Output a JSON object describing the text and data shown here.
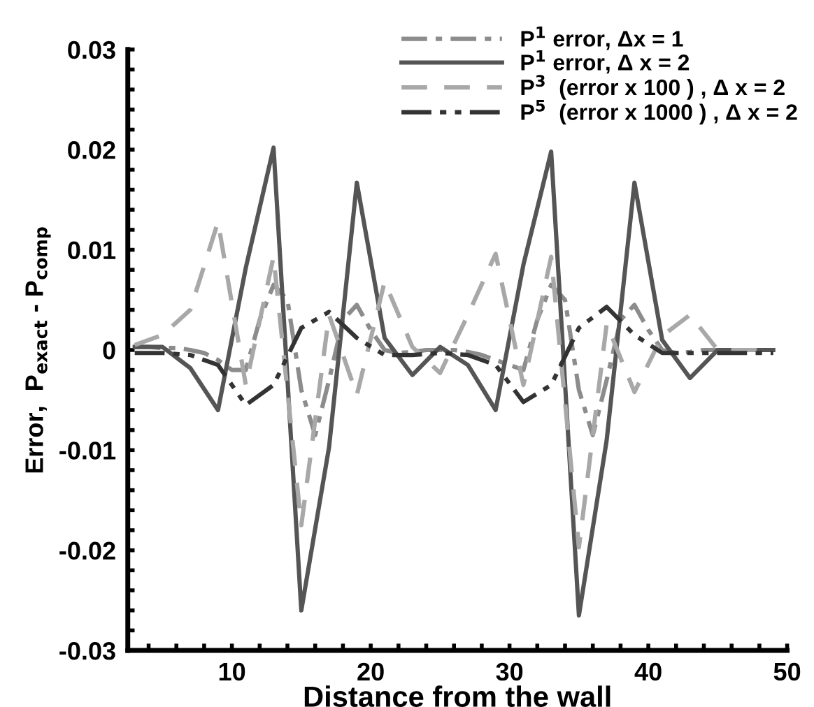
{
  "chart_data": {
    "type": "line",
    "xlabel": "Distance from the wall",
    "ylabel": "Error,  P$_{exact}$ - P$_{comp}$",
    "xlim": [
      2.5,
      50
    ],
    "ylim": [
      -0.03,
      0.03
    ],
    "xticks": [
      {
        "value": 4,
        "label": null
      },
      {
        "value": 6,
        "label": null
      },
      {
        "value": 8,
        "label": null
      },
      10,
      {
        "value": 12,
        "label": null
      },
      {
        "value": 14,
        "label": null
      },
      {
        "value": 16,
        "label": null
      },
      {
        "value": 18,
        "label": null
      },
      20,
      {
        "value": 22,
        "label": null
      },
      {
        "value": 24,
        "label": null
      },
      {
        "value": 26,
        "label": null
      },
      {
        "value": 28,
        "label": null
      },
      30,
      {
        "value": 32,
        "label": null
      },
      {
        "value": 34,
        "label": null
      },
      {
        "value": 36,
        "label": null
      },
      {
        "value": 38,
        "label": null
      },
      40,
      {
        "value": 42,
        "label": null
      },
      {
        "value": 44,
        "label": null
      },
      {
        "value": 46,
        "label": null
      },
      {
        "value": 48,
        "label": null
      },
      50
    ],
    "yticks": [
      -0.03,
      {
        "value": -0.028,
        "label": null
      },
      {
        "value": -0.026,
        "label": null
      },
      {
        "value": -0.024,
        "label": null
      },
      {
        "value": -0.022,
        "label": null
      },
      -0.02,
      {
        "value": -0.018,
        "label": null
      },
      {
        "value": -0.016,
        "label": null
      },
      {
        "value": -0.014,
        "label": null
      },
      {
        "value": -0.012,
        "label": null
      },
      -0.01,
      {
        "value": -0.008,
        "label": null
      },
      {
        "value": -0.006,
        "label": null
      },
      {
        "value": -0.004,
        "label": null
      },
      {
        "value": -0.002,
        "label": null
      },
      0,
      {
        "value": 0.002,
        "label": null
      },
      {
        "value": 0.004,
        "label": null
      },
      {
        "value": 0.006,
        "label": null
      },
      {
        "value": 0.008,
        "label": null
      },
      0.01,
      {
        "value": 0.012,
        "label": null
      },
      {
        "value": 0.014,
        "label": null
      },
      {
        "value": 0.016,
        "label": null
      },
      {
        "value": 0.018,
        "label": null
      },
      0.02,
      {
        "value": 0.022,
        "label": null
      },
      {
        "value": 0.024,
        "label": null
      },
      {
        "value": 0.026,
        "label": null
      },
      {
        "value": 0.028,
        "label": null
      },
      0.03
    ],
    "grid": false,
    "legend": "top right",
    "marker": "none",
    "series": [
      {
        "name": "P$^{1}$ error, Δx = 1",
        "color": "#8c8c8c",
        "line_style": "dashdot",
        "x": [
          3,
          4,
          5,
          6,
          7,
          8,
          9,
          10,
          11,
          12,
          13,
          14,
          15,
          16,
          17,
          18,
          19,
          20,
          21,
          22,
          23,
          24,
          25,
          26,
          27,
          28,
          29,
          30,
          31,
          32,
          33,
          34,
          35,
          36,
          37,
          38,
          39,
          40,
          41,
          42,
          43,
          44,
          45,
          46,
          47,
          48,
          49
        ],
        "values": [
          0.0003,
          0.0003,
          0.0002,
          0.0002,
          0,
          -0.0003,
          -0.001,
          -0.002,
          -0.002,
          0.003,
          0.0065,
          0.005,
          -0.004,
          -0.0085,
          -0.003,
          0.003,
          0.0045,
          0.002,
          0,
          -0.0003,
          -0.0002,
          0,
          0,
          0,
          -0.0002,
          -0.0005,
          -0.001,
          -0.0015,
          -0.002,
          0.003,
          0.0065,
          0.005,
          -0.004,
          -0.0085,
          -0.003,
          0.003,
          0.0045,
          0.002,
          0,
          -0.0003,
          -0.0002,
          0,
          0,
          0,
          0,
          0,
          0
        ]
      },
      {
        "name": "P$^{1}$ error, Δ x = 2",
        "color": "#555555",
        "line_style": "solid",
        "x": [
          3,
          5,
          7,
          9,
          11,
          13,
          15,
          17,
          19,
          21,
          23,
          25,
          27,
          29,
          31,
          33,
          35,
          37,
          39,
          41,
          43,
          45,
          47,
          49
        ],
        "values": [
          0.0003,
          0.0003,
          -0.0018,
          -0.006,
          0.0082,
          0.0202,
          -0.026,
          -0.0097,
          0.0167,
          0.0012,
          -0.0025,
          0.0003,
          -0.0015,
          -0.006,
          0.0085,
          0.0198,
          -0.0265,
          -0.009,
          0.0167,
          0.001,
          -0.0028,
          0,
          0,
          0
        ]
      },
      {
        "name": "P$^{3}$  (error x 100 ) , Δ x = 2",
        "color": "#a8a8a8",
        "line_style": "dashed",
        "x": [
          3,
          5,
          7,
          9,
          11,
          13,
          15,
          17,
          19,
          21,
          23,
          25,
          27,
          29,
          31,
          33,
          35,
          37,
          39,
          41,
          43,
          45,
          47,
          49
        ],
        "values": [
          0.0005,
          0.0015,
          0.004,
          0.0128,
          -0.0035,
          0.0093,
          -0.0175,
          0.0035,
          -0.0045,
          0.0068,
          0.0003,
          -0.0023,
          0.0035,
          0.0096,
          -0.0035,
          0.0093,
          -0.0197,
          0.0026,
          -0.0042,
          0.0014,
          0.0035,
          0,
          0,
          0
        ]
      },
      {
        "name": "P$^{5}$  (error x 1000 ) , Δ x = 2",
        "color": "#333333",
        "line_style": "dashdotdot",
        "x": [
          3,
          5,
          7,
          9,
          11,
          13,
          15,
          17,
          19,
          21,
          23,
          25,
          27,
          29,
          31,
          33,
          35,
          37,
          39,
          41,
          43,
          45,
          47,
          49
        ],
        "values": [
          -0.0003,
          -0.0003,
          -0.0005,
          -0.0015,
          -0.0055,
          -0.0035,
          0.0022,
          0.0038,
          0.0012,
          -0.0005,
          -0.0005,
          -0.0003,
          -0.0005,
          -0.0015,
          -0.0052,
          -0.0035,
          0.0022,
          0.0043,
          0.0015,
          -0.0003,
          -0.0003,
          -0.0003,
          -0.0003,
          -0.0003
        ]
      }
    ]
  }
}
